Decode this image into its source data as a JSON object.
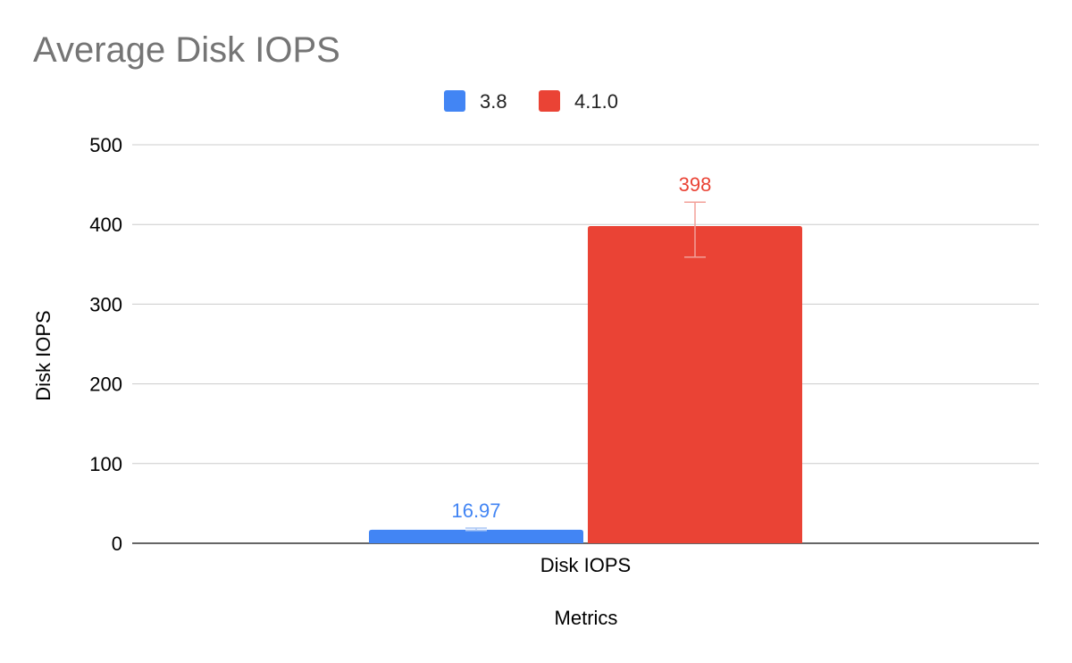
{
  "chart_data": {
    "type": "bar",
    "title": "Average Disk IOPS",
    "xlabel": "Metrics",
    "ylabel": "Disk IOPS",
    "categories": [
      "Disk IOPS"
    ],
    "ylim": [
      0,
      500
    ],
    "yticks": [
      0,
      100,
      200,
      300,
      400,
      500
    ],
    "grid": true,
    "legend_position": "top",
    "series": [
      {
        "name": "3.8",
        "values": [
          16.97
        ],
        "data_labels": [
          "16.97"
        ],
        "error": [
          [
            16,
            19
          ]
        ],
        "color": "#4285f4"
      },
      {
        "name": "4.1.0",
        "values": [
          398
        ],
        "data_labels": [
          "398"
        ],
        "error": [
          [
            359,
            428
          ]
        ],
        "color": "#ea4335"
      }
    ]
  }
}
